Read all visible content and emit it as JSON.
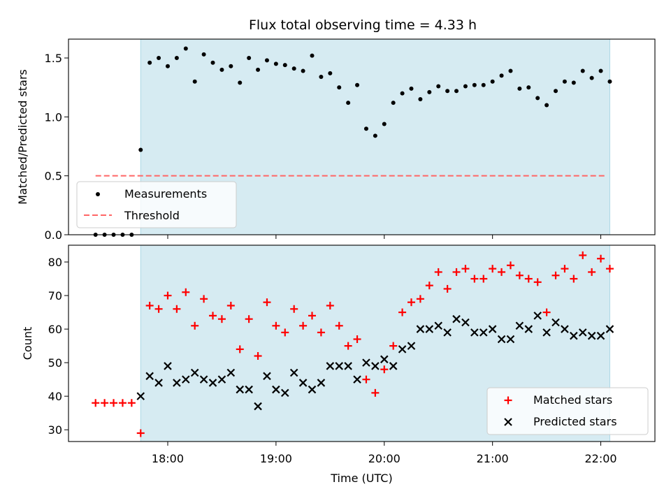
{
  "colors": {
    "shade": "#add8e6",
    "measurement": "#000000",
    "threshold": "#ff6666",
    "matched": "#ff0000",
    "predicted": "#000000"
  },
  "chart_data": [
    {
      "type": "scatter",
      "panel": "top",
      "title": "Flux total observing time = 4.33 h",
      "xlabel": "",
      "ylabel": "Matched/Predicted stars",
      "ylim": [
        0,
        1.66
      ],
      "yticks": [
        {
          "value": 0.0,
          "label": "0.0"
        },
        {
          "value": 0.5,
          "label": "0.5"
        },
        {
          "value": 1.0,
          "label": "1.0"
        },
        {
          "value": 1.5,
          "label": "1.5"
        }
      ],
      "shaded_region": {
        "start": "17:45",
        "end": "22:05"
      },
      "legend": {
        "placement": "lower-left",
        "entries": [
          "Measurements",
          "Threshold"
        ]
      },
      "threshold": {
        "name": "Threshold",
        "value": 0.5,
        "x_start": "17:20",
        "x_end": "22:03"
      },
      "series": [
        {
          "name": "Measurements",
          "marker": "dot",
          "x": [
            "17:20",
            "17:25",
            "17:30",
            "17:35",
            "17:40",
            "17:45",
            "17:50",
            "17:55",
            "18:00",
            "18:05",
            "18:10",
            "18:15",
            "18:20",
            "18:25",
            "18:30",
            "18:35",
            "18:40",
            "18:45",
            "18:50",
            "18:55",
            "19:00",
            "19:05",
            "19:10",
            "19:15",
            "19:20",
            "19:25",
            "19:30",
            "19:35",
            "19:40",
            "19:45",
            "19:50",
            "19:55",
            "20:00",
            "20:05",
            "20:10",
            "20:15",
            "20:20",
            "20:25",
            "20:30",
            "20:35",
            "20:40",
            "20:45",
            "20:50",
            "20:55",
            "21:00",
            "21:05",
            "21:10",
            "21:15",
            "21:20",
            "21:25",
            "21:30",
            "21:35",
            "21:40",
            "21:45",
            "21:50",
            "21:55",
            "22:00",
            "22:05"
          ],
          "values": [
            0,
            0,
            0,
            0,
            0,
            0.72,
            1.46,
            1.5,
            1.43,
            1.5,
            1.58,
            1.3,
            1.53,
            1.46,
            1.4,
            1.43,
            1.29,
            1.5,
            1.4,
            1.48,
            1.45,
            1.44,
            1.41,
            1.39,
            1.52,
            1.34,
            1.37,
            1.25,
            1.12,
            1.27,
            0.9,
            0.84,
            0.94,
            1.12,
            1.2,
            1.24,
            1.15,
            1.21,
            1.26,
            1.22,
            1.22,
            1.26,
            1.27,
            1.27,
            1.3,
            1.35,
            1.39,
            1.24,
            1.25,
            1.16,
            1.1,
            1.22,
            1.3,
            1.29,
            1.39,
            1.33,
            1.39,
            1.3
          ]
        }
      ]
    },
    {
      "type": "scatter",
      "panel": "bottom",
      "title": "",
      "xlabel": "Time (UTC)",
      "ylabel": "Count",
      "ylim": [
        26.5,
        85
      ],
      "xlim": [
        "17:05",
        "22:30"
      ],
      "xticks": [
        "18:00",
        "19:00",
        "20:00",
        "21:00",
        "22:00"
      ],
      "yticks": [
        {
          "value": 30,
          "label": "30"
        },
        {
          "value": 40,
          "label": "40"
        },
        {
          "value": 50,
          "label": "50"
        },
        {
          "value": 60,
          "label": "60"
        },
        {
          "value": 70,
          "label": "70"
        },
        {
          "value": 80,
          "label": "80"
        }
      ],
      "shaded_region": {
        "start": "17:45",
        "end": "22:05"
      },
      "legend": {
        "placement": "lower-right",
        "entries": [
          "Matched stars",
          "Predicted stars"
        ]
      },
      "series": [
        {
          "name": "Matched stars",
          "marker": "plus",
          "x": [
            "17:20",
            "17:25",
            "17:30",
            "17:35",
            "17:40",
            "17:45",
            "17:50",
            "17:55",
            "18:00",
            "18:05",
            "18:10",
            "18:15",
            "18:20",
            "18:25",
            "18:30",
            "18:35",
            "18:40",
            "18:45",
            "18:50",
            "18:55",
            "19:00",
            "19:05",
            "19:10",
            "19:15",
            "19:20",
            "19:25",
            "19:30",
            "19:35",
            "19:40",
            "19:45",
            "19:50",
            "19:55",
            "20:00",
            "20:05",
            "20:10",
            "20:15",
            "20:20",
            "20:25",
            "20:30",
            "20:35",
            "20:40",
            "20:45",
            "20:50",
            "20:55",
            "21:00",
            "21:05",
            "21:10",
            "21:15",
            "21:20",
            "21:25",
            "21:30",
            "21:35",
            "21:40",
            "21:45",
            "21:50",
            "21:55",
            "22:00",
            "22:05"
          ],
          "values": [
            38,
            38,
            38,
            38,
            38,
            29,
            67,
            66,
            70,
            66,
            71,
            61,
            69,
            64,
            63,
            67,
            54,
            63,
            52,
            68,
            61,
            59,
            66,
            61,
            64,
            59,
            67,
            61,
            55,
            57,
            45,
            41,
            48,
            55,
            65,
            68,
            69,
            73,
            77,
            72,
            77,
            78,
            75,
            75,
            78,
            77,
            79,
            76,
            75,
            74,
            65,
            76,
            78,
            75,
            82,
            77,
            81,
            78
          ]
        },
        {
          "name": "Predicted stars",
          "marker": "x",
          "x": [
            "17:45",
            "17:50",
            "17:55",
            "18:00",
            "18:05",
            "18:10",
            "18:15",
            "18:20",
            "18:25",
            "18:30",
            "18:35",
            "18:40",
            "18:45",
            "18:50",
            "18:55",
            "19:00",
            "19:05",
            "19:10",
            "19:15",
            "19:20",
            "19:25",
            "19:30",
            "19:35",
            "19:40",
            "19:45",
            "19:50",
            "19:55",
            "20:00",
            "20:05",
            "20:10",
            "20:15",
            "20:20",
            "20:25",
            "20:30",
            "20:35",
            "20:40",
            "20:45",
            "20:50",
            "20:55",
            "21:00",
            "21:05",
            "21:10",
            "21:15",
            "21:20",
            "21:25",
            "21:30",
            "21:35",
            "21:40",
            "21:45",
            "21:50",
            "21:55",
            "22:00",
            "22:05"
          ],
          "values": [
            40,
            46,
            44,
            49,
            44,
            45,
            47,
            45,
            44,
            45,
            47,
            42,
            42,
            37,
            46,
            42,
            41,
            47,
            44,
            42,
            44,
            49,
            49,
            49,
            45,
            50,
            49,
            51,
            49,
            54,
            55,
            60,
            60,
            61,
            59,
            63,
            62,
            59,
            59,
            60,
            57,
            57,
            61,
            60,
            64,
            59,
            62,
            60,
            58,
            59,
            58,
            58,
            60
          ]
        }
      ]
    }
  ]
}
